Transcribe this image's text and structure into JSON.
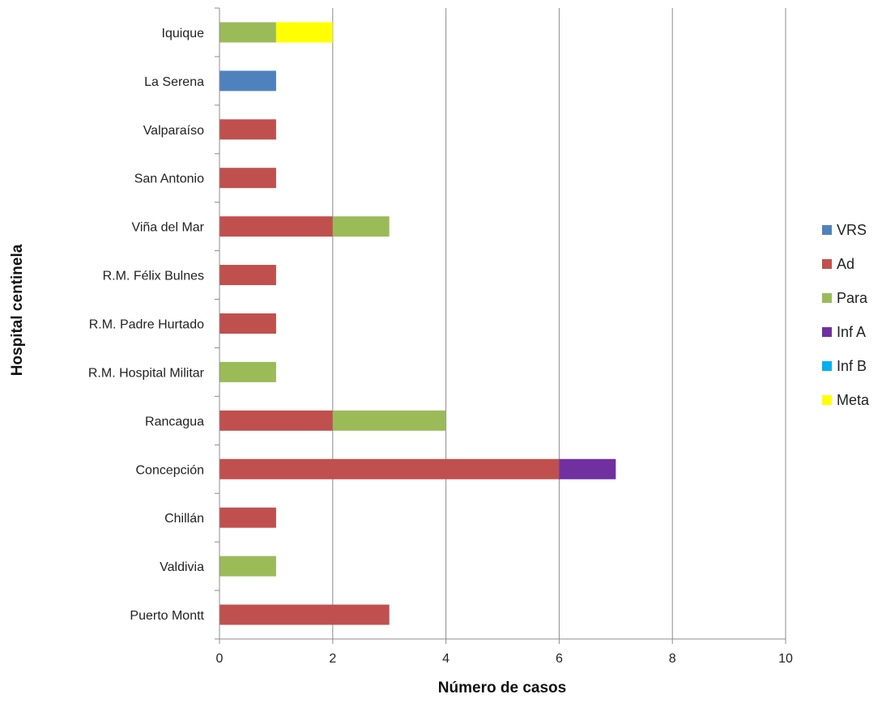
{
  "chart_data": {
    "type": "bar",
    "orientation": "horizontal",
    "stacked": true,
    "categories": [
      "Iquique",
      "La Serena",
      "Valparaíso",
      "San Antonio",
      "Viña del Mar",
      "R.M. Félix Bulnes",
      "R.M. Padre Hurtado",
      "R.M. Hospital Militar",
      "Rancagua",
      "Concepción",
      "Chillán",
      "Valdivia",
      "Puerto Montt"
    ],
    "series": [
      {
        "name": "VRS",
        "color": "#4F81BD",
        "values": [
          0,
          1,
          0,
          0,
          0,
          0,
          0,
          0,
          0,
          0,
          0,
          0,
          0
        ]
      },
      {
        "name": "Ad",
        "color": "#C0504D",
        "values": [
          0,
          0,
          1,
          1,
          2,
          1,
          1,
          0,
          2,
          6,
          1,
          0,
          3
        ]
      },
      {
        "name": "Para",
        "color": "#9BBB59",
        "values": [
          1,
          0,
          0,
          0,
          1,
          0,
          0,
          1,
          2,
          0,
          0,
          1,
          0
        ]
      },
      {
        "name": "Inf A",
        "color": "#7030A0",
        "values": [
          0,
          0,
          0,
          0,
          0,
          0,
          0,
          0,
          0,
          1,
          0,
          0,
          0
        ]
      },
      {
        "name": "Inf B",
        "color": "#00B0F0",
        "values": [
          0,
          0,
          0,
          0,
          0,
          0,
          0,
          0,
          0,
          0,
          0,
          0,
          0
        ]
      },
      {
        "name": "Meta",
        "color": "#FFFF00",
        "values": [
          1,
          0,
          0,
          0,
          0,
          0,
          0,
          0,
          0,
          0,
          0,
          0,
          0
        ]
      }
    ],
    "xlabel": "Número de casos",
    "ylabel": "Hospital centinela",
    "xlim": [
      0,
      10
    ],
    "xticks": [
      0,
      2,
      4,
      6,
      8,
      10
    ],
    "grid": "vertical",
    "legend": "right"
  }
}
